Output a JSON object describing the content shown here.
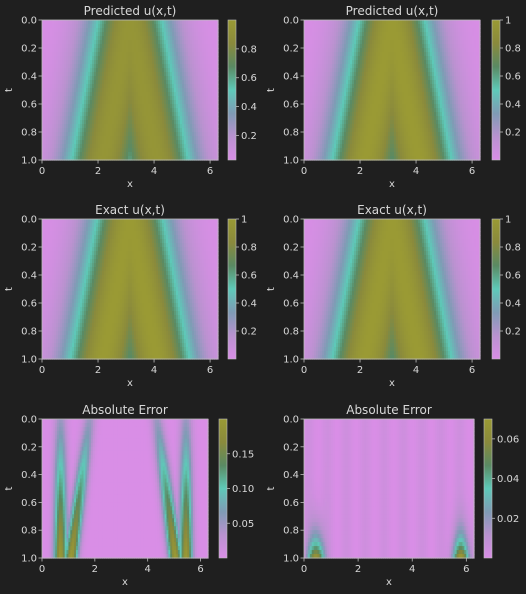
{
  "colors": {
    "background": "#1f1f1f",
    "text": "#d8d8d8",
    "axis": "#bdbdbd"
  },
  "colormap": [
    "#d98ee6",
    "#b992cf",
    "#7f9bb5",
    "#5ec9b8",
    "#5a8a63",
    "#8a8a3c",
    "#9a9a34"
  ],
  "chart_data": [
    {
      "type": "heatmap",
      "title": "Predicted u(x,t)",
      "xlabel": "x",
      "ylabel": "t",
      "xlim": [
        0,
        6.283
      ],
      "ylim": [
        0,
        1
      ],
      "y_inverted": true,
      "grid": false,
      "cmap_style": "dark",
      "xticks": [
        0,
        2,
        4,
        6
      ],
      "yticks": [
        0.0,
        0.2,
        0.4,
        0.6,
        0.8,
        1.0
      ],
      "colorbar": {
        "range": [
          0.03,
          1.0
        ],
        "ticks": [
          0.2,
          0.4,
          0.6,
          0.8
        ]
      },
      "field": {
        "kind": "advected_peak",
        "center": 3.14,
        "speed": 0.95,
        "width": 1.0,
        "floor": 0.03,
        "peak": 0.95
      }
    },
    {
      "type": "heatmap",
      "title": "Predicted u(x,t)",
      "xlabel": "x",
      "ylabel": "t",
      "xlim": [
        0,
        6.283
      ],
      "ylim": [
        0,
        1
      ],
      "y_inverted": true,
      "grid": false,
      "cmap_style": "dark",
      "xticks": [
        0,
        2,
        4,
        6
      ],
      "yticks": [
        0.0,
        0.2,
        0.4,
        0.6,
        0.8,
        1.0
      ],
      "colorbar": {
        "range": [
          0.0,
          1.0
        ],
        "ticks": [
          0.2,
          0.4,
          0.6,
          0.8,
          1.0
        ]
      },
      "field": {
        "kind": "advected_peak",
        "center": 3.14,
        "speed": 0.95,
        "width": 1.0,
        "floor": 0.0,
        "peak": 1.0
      }
    },
    {
      "type": "heatmap",
      "title": "Exact u(x,t)",
      "xlabel": "x",
      "ylabel": "t",
      "xlim": [
        0,
        6.283
      ],
      "ylim": [
        0,
        1
      ],
      "y_inverted": true,
      "grid": false,
      "cmap_style": "dark",
      "xticks": [
        0,
        2,
        4,
        6
      ],
      "yticks": [
        0.0,
        0.2,
        0.4,
        0.6,
        0.8,
        1.0
      ],
      "colorbar": {
        "range": [
          0.0,
          1.0
        ],
        "ticks": [
          0.2,
          0.4,
          0.6,
          0.8,
          1.0
        ]
      },
      "field": {
        "kind": "advected_peak",
        "center": 3.14,
        "speed": 0.95,
        "width": 1.0,
        "floor": 0.0,
        "peak": 1.0
      }
    },
    {
      "type": "heatmap",
      "title": "Exact u(x,t)",
      "xlabel": "x",
      "ylabel": "t",
      "xlim": [
        0,
        6.283
      ],
      "ylim": [
        0,
        1
      ],
      "y_inverted": true,
      "grid": false,
      "cmap_style": "dark",
      "xticks": [
        0,
        2,
        4,
        6
      ],
      "yticks": [
        0.0,
        0.2,
        0.4,
        0.6,
        0.8,
        1.0
      ],
      "colorbar": {
        "range": [
          0.0,
          1.0
        ],
        "ticks": [
          0.2,
          0.4,
          0.6,
          0.8,
          1.0
        ]
      },
      "field": {
        "kind": "advected_peak",
        "center": 3.14,
        "speed": 0.95,
        "width": 1.0,
        "floor": 0.0,
        "peak": 1.0
      }
    },
    {
      "type": "heatmap",
      "title": "Absolute Error",
      "xlabel": "x",
      "ylabel": "t",
      "xlim": [
        0,
        6.283
      ],
      "ylim": [
        0,
        1
      ],
      "y_inverted": true,
      "grid": false,
      "cmap_style": "error",
      "xticks": [
        0,
        2,
        4,
        6
      ],
      "yticks": [
        0.0,
        0.2,
        0.4,
        0.6,
        0.8,
        1.0
      ],
      "colorbar": {
        "range": [
          0.0,
          0.2
        ],
        "ticks": [
          0.05,
          0.1,
          0.15
        ]
      },
      "colorbar_labels": [
        "0.05",
        "0.10",
        "0.15"
      ],
      "field": {
        "kind": "error_arcs",
        "centers": [
          1.25,
          4.9
        ],
        "max": 0.2
      }
    },
    {
      "type": "heatmap",
      "title": "Absolute Error",
      "xlabel": "x",
      "ylabel": "t",
      "xlim": [
        0,
        6.283
      ],
      "ylim": [
        0,
        1
      ],
      "y_inverted": true,
      "grid": false,
      "cmap_style": "error",
      "xticks": [
        0,
        2,
        4,
        6
      ],
      "yticks": [
        0.0,
        0.2,
        0.4,
        0.6,
        0.8,
        1.0
      ],
      "colorbar": {
        "range": [
          0.0,
          0.07
        ],
        "ticks": [
          0.02,
          0.04,
          0.06
        ]
      },
      "field": {
        "kind": "error_edges",
        "centers": [
          0.45,
          5.8
        ],
        "max": 0.07
      }
    }
  ]
}
